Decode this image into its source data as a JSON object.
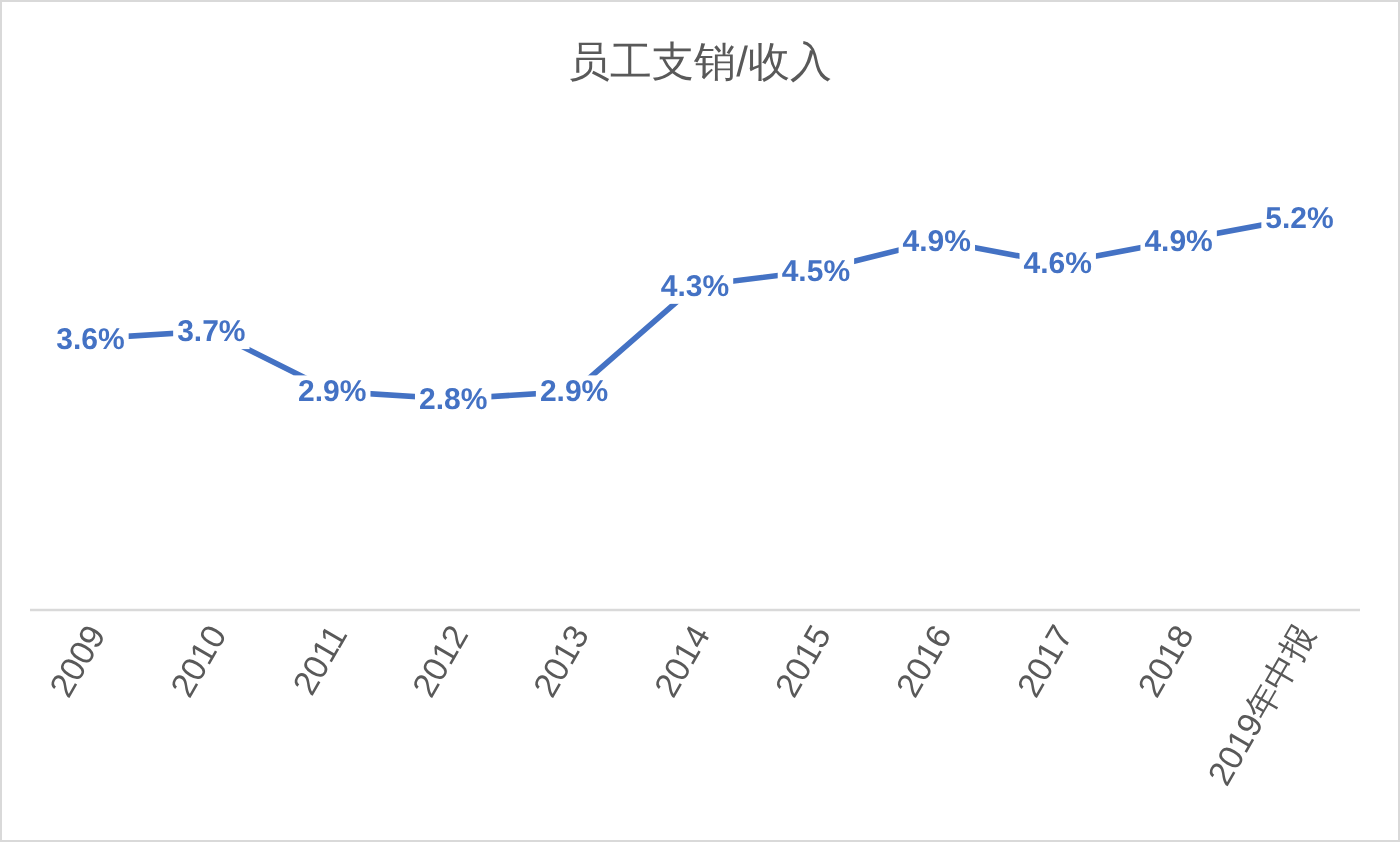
{
  "chart_data": {
    "type": "line",
    "title": "员工支销/收入",
    "categories": [
      "2009",
      "2010",
      "2011",
      "2012",
      "2013",
      "2014",
      "2015",
      "2016",
      "2017",
      "2018",
      "2019年中报"
    ],
    "series": [
      {
        "color": "#4472c4",
        "values": [
          3.6,
          3.7,
          2.9,
          2.8,
          2.9,
          4.3,
          4.5,
          4.9,
          4.6,
          4.9,
          5.2
        ],
        "value_labels": [
          "3.6%",
          "3.7%",
          "2.9%",
          "2.8%",
          "2.9%",
          "4.3%",
          "4.5%",
          "4.9%",
          "4.6%",
          "4.9%",
          "5.2%"
        ]
      }
    ],
    "line_style": "solid"
  }
}
